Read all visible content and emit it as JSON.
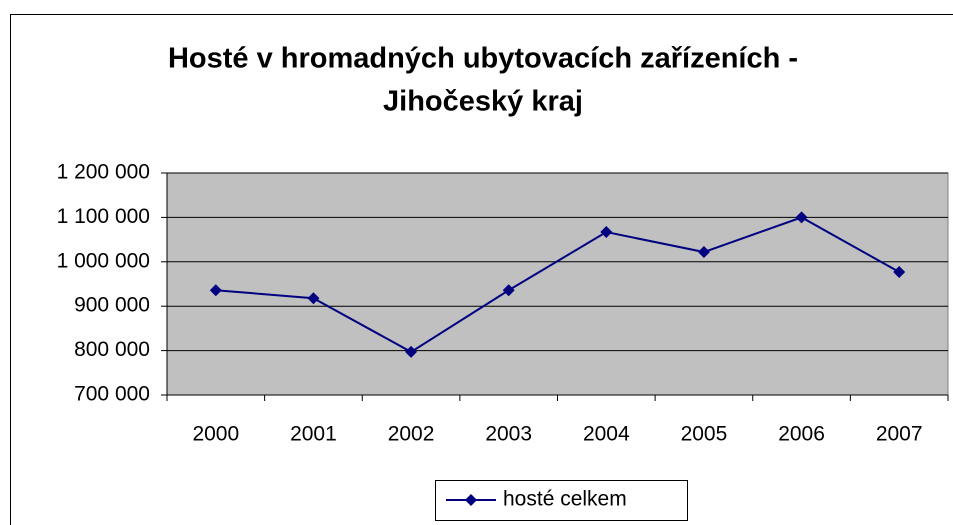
{
  "chart_data": {
    "type": "line",
    "title": [
      "Hosté v hromadných ubytovacích zařízeních -",
      "Jihočeský kraj"
    ],
    "categories": [
      "2000",
      "2001",
      "2002",
      "2003",
      "2004",
      "2005",
      "2006",
      "2007"
    ],
    "series": [
      {
        "name": "hosté celkem",
        "color": "#000080",
        "values": [
          936000,
          918000,
          797000,
          936000,
          1067000,
          1022000,
          1100000,
          977000
        ]
      }
    ],
    "ylim": [
      700000,
      1200000
    ],
    "yticks": [
      {
        "value": 700000,
        "label": "700 000"
      },
      {
        "value": 800000,
        "label": "800 000"
      },
      {
        "value": 900000,
        "label": "900 000"
      },
      {
        "value": 1000000,
        "label": "1 000 000"
      },
      {
        "value": 1100000,
        "label": "1 100 000"
      },
      {
        "value": 1200000,
        "label": "1 200 000"
      }
    ],
    "grid": true,
    "plot_background": "#c0c0c0",
    "legend": "bottom"
  }
}
